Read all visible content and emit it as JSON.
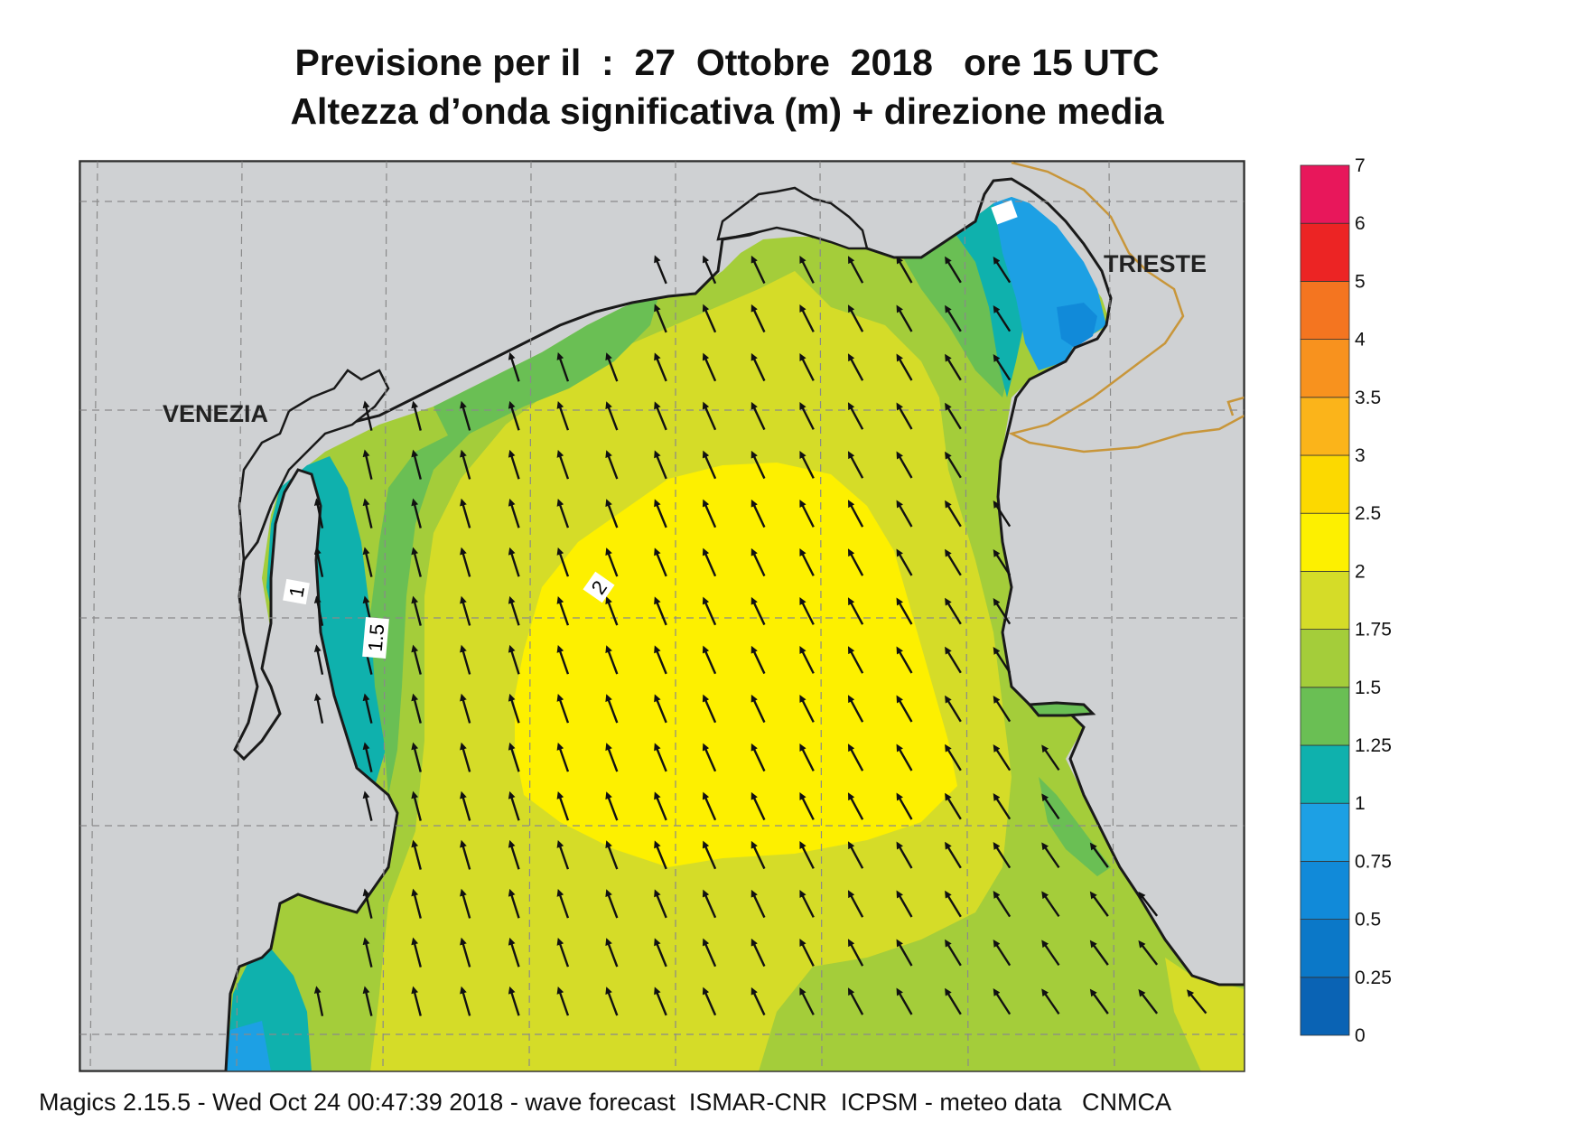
{
  "title": {
    "line1": "Previsione per il  :  27  Ottobre  2018   ore 15 UTC",
    "line2": "Altezza d’onda significativa (m) + direzione media"
  },
  "places": {
    "venezia": "VENEZIA",
    "trieste": "TRIESTE"
  },
  "contour_labels": [
    "1",
    "1.5",
    "2"
  ],
  "legend": {
    "labels": [
      "0",
      "0.25",
      "0.5",
      "0.75",
      "1",
      "1.25",
      "1.5",
      "1.75",
      "2",
      "2.5",
      "3",
      "3.5",
      "4",
      "5",
      "6",
      "7"
    ],
    "colors": [
      "#0a63b4",
      "#0b78c8",
      "#118ad9",
      "#1da0e4",
      "#0fb1ad",
      "#6abf54",
      "#a4cd3a",
      "#d5dc28",
      "#fdf000",
      "#fcd900",
      "#fbb41a",
      "#f8921e",
      "#f47520",
      "#ec2424",
      "#e8175b"
    ]
  },
  "colors": {
    "land": "#cfd1d3",
    "coast": "#1a1a1a",
    "border": "#c8963a",
    "grid": "#8a8a8a"
  },
  "footer": "Magics 2.15.5 - Wed Oct 24 00:47:39 2018 - wave forecast  ISMAR-CNR  ICPSM - meteo data   CNMCA"
}
